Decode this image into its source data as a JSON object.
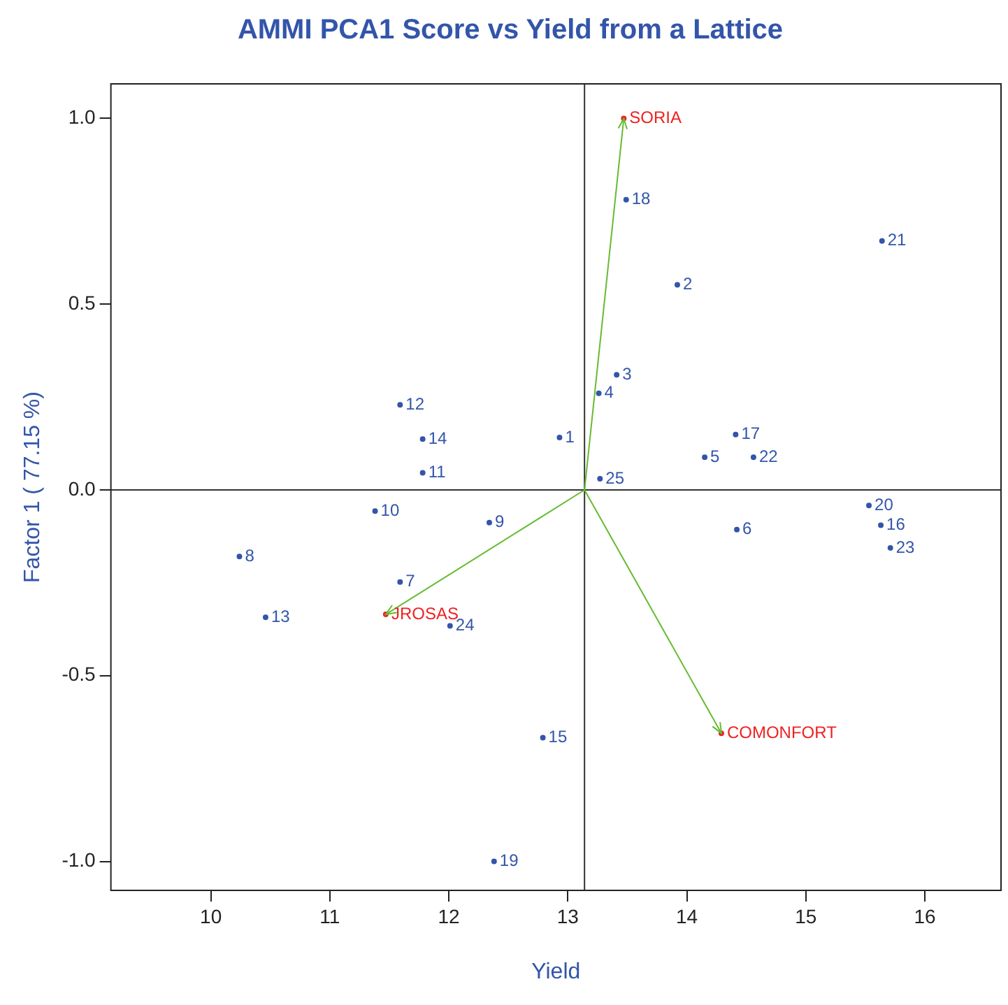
{
  "chart_data": {
    "type": "scatter",
    "title": "AMMI PCA1 Score vs Yield from a Lattice",
    "xlabel": "Yield",
    "ylabel": "Factor 1 ( 77.15 %)",
    "xlim": [
      9.16,
      16.64
    ],
    "ylim": [
      -1.078,
      1.093
    ],
    "xticks": [
      10,
      11,
      12,
      13,
      14,
      15,
      16
    ],
    "yticks": [
      {
        "value": -1,
        "label": "-1.0"
      },
      {
        "value": -0.5,
        "label": "-0.5"
      },
      {
        "value": 0,
        "label": "0.0"
      },
      {
        "value": 0.5,
        "label": "0.5"
      },
      {
        "value": 1,
        "label": "1.0"
      }
    ],
    "grid": false,
    "legend": false,
    "marker": "circle",
    "ref_lines": [
      {
        "axis": "x",
        "value": 13.14,
        "color": "#333333"
      },
      {
        "axis": "y",
        "value": 0,
        "color": "#333333"
      }
    ],
    "series": [
      {
        "type": "line",
        "marker": "none",
        "color": "#66bb33",
        "x": [
          13.14,
          13.47
        ],
        "values": [
          0,
          1.0
        ]
      },
      {
        "type": "line",
        "marker": "none",
        "color": "#66bb33",
        "x": [
          13.14,
          11.47
        ],
        "values": [
          0,
          -0.335
        ]
      },
      {
        "type": "line",
        "marker": "none",
        "color": "#66bb33",
        "x": [
          13.14,
          14.29
        ],
        "values": [
          0,
          -0.655
        ]
      },
      {
        "name": "1",
        "color": "#3355aa",
        "x": [
          12.93
        ],
        "values": [
          0.141
        ]
      },
      {
        "name": "2",
        "color": "#3355aa",
        "x": [
          13.92
        ],
        "values": [
          0.552
        ]
      },
      {
        "name": "3",
        "color": "#3355aa",
        "x": [
          13.41
        ],
        "values": [
          0.31
        ]
      },
      {
        "name": "4",
        "color": "#3355aa",
        "x": [
          13.26
        ],
        "values": [
          0.26
        ]
      },
      {
        "name": "5",
        "color": "#3355aa",
        "x": [
          14.15
        ],
        "values": [
          0.088
        ]
      },
      {
        "name": "6",
        "color": "#3355aa",
        "x": [
          14.42
        ],
        "values": [
          -0.107
        ]
      },
      {
        "name": "7",
        "color": "#3355aa",
        "x": [
          11.59
        ],
        "values": [
          -0.248
        ]
      },
      {
        "name": "8",
        "color": "#3355aa",
        "x": [
          10.24
        ],
        "values": [
          -0.179
        ]
      },
      {
        "name": "9",
        "color": "#3355aa",
        "x": [
          12.34
        ],
        "values": [
          -0.088
        ]
      },
      {
        "name": "10",
        "color": "#3355aa",
        "x": [
          11.38
        ],
        "values": [
          -0.057
        ]
      },
      {
        "name": "11",
        "color": "#3355aa",
        "x": [
          11.78
        ],
        "values": [
          0.046
        ]
      },
      {
        "name": "12",
        "color": "#3355aa",
        "x": [
          11.59
        ],
        "values": [
          0.229
        ]
      },
      {
        "name": "13",
        "color": "#3355aa",
        "x": [
          10.46
        ],
        "values": [
          -0.343
        ]
      },
      {
        "name": "14",
        "color": "#3355aa",
        "x": [
          11.78
        ],
        "values": [
          0.137
        ]
      },
      {
        "name": "15",
        "color": "#3355aa",
        "x": [
          12.79
        ],
        "values": [
          -0.667
        ]
      },
      {
        "name": "16",
        "color": "#3355aa",
        "x": [
          15.63
        ],
        "values": [
          -0.095
        ]
      },
      {
        "name": "17",
        "color": "#3355aa",
        "x": [
          14.41
        ],
        "values": [
          0.149
        ]
      },
      {
        "name": "18",
        "color": "#3355aa",
        "x": [
          13.49
        ],
        "values": [
          0.781
        ]
      },
      {
        "name": "19",
        "color": "#3355aa",
        "x": [
          12.38
        ],
        "values": [
          -1.0
        ]
      },
      {
        "name": "20",
        "color": "#3355aa",
        "x": [
          15.53
        ],
        "values": [
          -0.042
        ]
      },
      {
        "name": "21",
        "color": "#3355aa",
        "x": [
          15.64
        ],
        "values": [
          0.67
        ]
      },
      {
        "name": "22",
        "color": "#3355aa",
        "x": [
          14.56
        ],
        "values": [
          0.088
        ]
      },
      {
        "name": "23",
        "color": "#3355aa",
        "x": [
          15.71
        ],
        "values": [
          -0.156
        ]
      },
      {
        "name": "24",
        "color": "#3355aa",
        "x": [
          12.01
        ],
        "values": [
          -0.366
        ]
      },
      {
        "name": "25",
        "color": "#3355aa",
        "x": [
          13.27
        ],
        "values": [
          0.03
        ]
      },
      {
        "name": "SORIA",
        "color": "#ee2222",
        "x": [
          13.47
        ],
        "values": [
          1.0
        ]
      },
      {
        "name": "JROSAS",
        "color": "#ee2222",
        "x": [
          11.47
        ],
        "values": [
          -0.335
        ]
      },
      {
        "name": "COMONFORT",
        "color": "#ee2222",
        "x": [
          14.29
        ],
        "values": [
          -0.655
        ]
      }
    ]
  }
}
